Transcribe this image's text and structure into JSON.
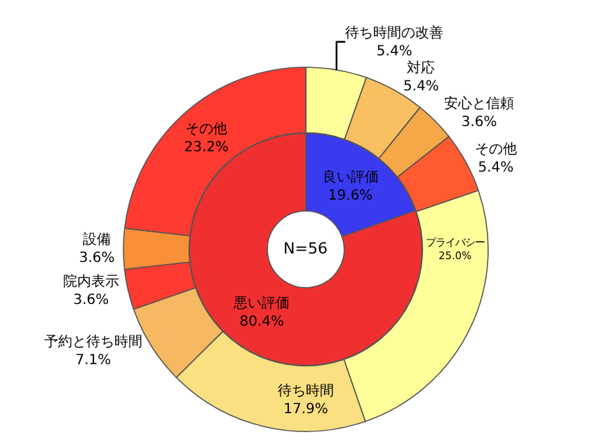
{
  "chart_data": [
    {
      "type": "donut",
      "categories": [
        "良い評価",
        "悪い評価"
      ],
      "values": [
        19.6,
        80.4
      ],
      "colors": [
        "#3a3af0",
        "#f03030"
      ],
      "value_labels": [
        "19.6%",
        "80.4%"
      ],
      "annotations": [
        "N=56"
      ],
      "legend": false
    },
    {
      "type": "donut",
      "categories": [
        "待ち時間の改善",
        "対応",
        "安心と信頼",
        "その他",
        "プライバシー",
        "待ち時間",
        "予約と待ち時間",
        "院内表示",
        "設備",
        "その他"
      ],
      "values": [
        5.4,
        5.4,
        3.6,
        5.4,
        25.0,
        17.9,
        7.1,
        3.6,
        3.6,
        23.2
      ],
      "colors": [
        "#ffff99",
        "#f8c060",
        "#f4a848",
        "#ff5a30",
        "#ffff99",
        "#fae080",
        "#f6b860",
        "#ff3a30",
        "#f89038",
        "#ff3a30"
      ],
      "value_labels": [
        "5.4%",
        "5.4%",
        "3.6%",
        "5.4%",
        "25.0%",
        "17.9%",
        "7.1%",
        "3.6%",
        "3.6%",
        "23.2%"
      ],
      "legend": false
    }
  ]
}
